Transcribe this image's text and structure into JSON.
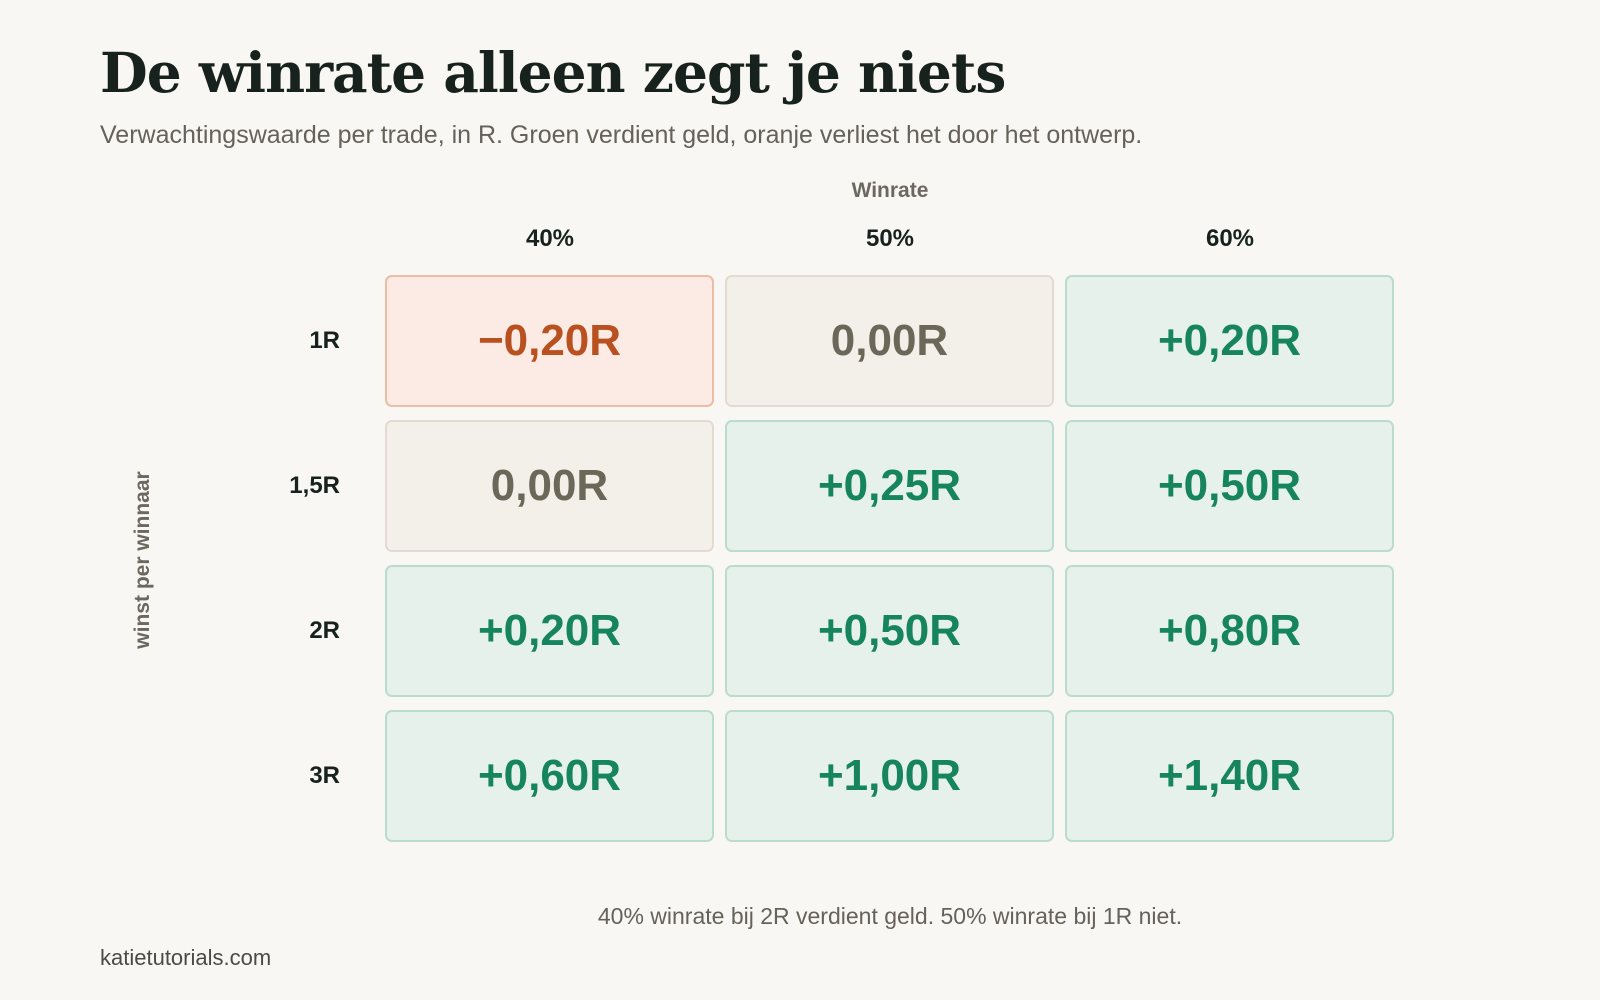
{
  "colors": {
    "positive": "#16855f",
    "negative": "#b8501f",
    "neutral": "#6c6859",
    "background": "#f9f7f3"
  },
  "chart_data": {
    "type": "heatmap",
    "title": "De winrate alleen zegt je niets",
    "subtitle": "Verwachtingswaarde per trade, in R. Groen verdient geld, oranje verliest het door het ontwerp.",
    "xlabel": "Winrate",
    "ylabel": "winst per winnaar",
    "x_categories": [
      "40%",
      "50%",
      "60%"
    ],
    "y_categories": [
      "1R",
      "1,5R",
      "2R",
      "3R"
    ],
    "values": [
      [
        -0.2,
        0.0,
        0.2
      ],
      [
        0.0,
        0.25,
        0.5
      ],
      [
        0.2,
        0.5,
        0.8
      ],
      [
        0.6,
        1.0,
        1.4
      ]
    ],
    "labels": [
      [
        "−0,20R",
        "0,00R",
        "+0,20R"
      ],
      [
        "0,00R",
        "+0,25R",
        "+0,50R"
      ],
      [
        "+0,20R",
        "+0,50R",
        "+0,80R"
      ],
      [
        "+0,60R",
        "+1,00R",
        "+1,40R"
      ]
    ],
    "footnote": "40% winrate bij 2R verdient geld. 50% winrate bij 1R niet."
  },
  "credit": "katietutorials.com"
}
